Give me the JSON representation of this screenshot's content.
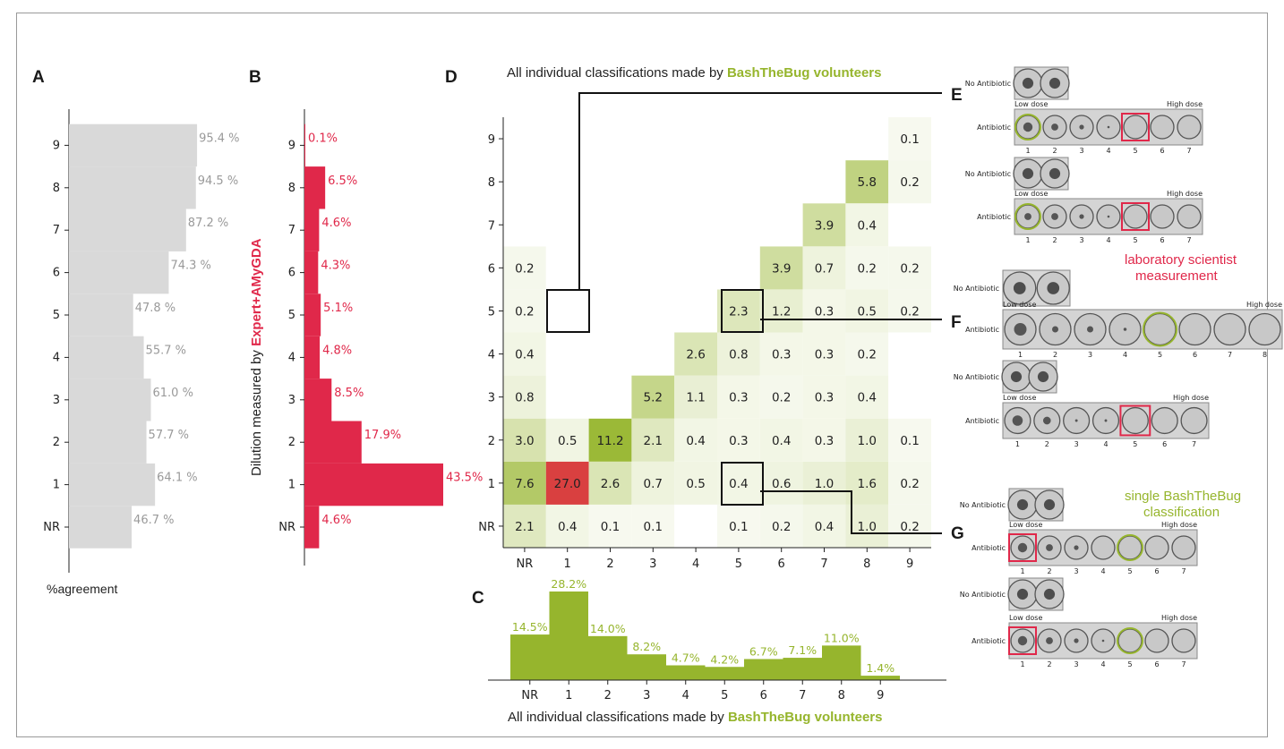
{
  "panels": {
    "A": "A",
    "B": "B",
    "C": "C",
    "D": "D",
    "E": "E",
    "F": "F",
    "G": "G"
  },
  "colors": {
    "red": "#e0284a",
    "green": "#96b52d",
    "grey": "#d9d9d9",
    "grey_text": "#9a9a9a",
    "heat_max": "#d94040"
  },
  "chart_data": [
    {
      "id": "A",
      "type": "bar",
      "orientation": "horizontal",
      "categories": [
        "NR",
        "1",
        "2",
        "3",
        "4",
        "5",
        "6",
        "7",
        "8",
        "9"
      ],
      "values": [
        46.7,
        64.1,
        57.7,
        61.0,
        55.7,
        47.8,
        74.3,
        87.2,
        94.5,
        95.4
      ],
      "value_labels": [
        "46.7 %",
        "64.1 %",
        "57.7 %",
        "61.0 %",
        "55.7 %",
        "47.8 %",
        "74.3 %",
        "87.2 %",
        "94.5 %",
        "95.4 %"
      ],
      "xlabel": "%agreement",
      "xlim": [
        0,
        100
      ]
    },
    {
      "id": "B",
      "type": "bar",
      "orientation": "horizontal",
      "categories": [
        "NR",
        "1",
        "2",
        "3",
        "4",
        "5",
        "6",
        "7",
        "8",
        "9"
      ],
      "values": [
        4.6,
        43.5,
        17.9,
        8.5,
        4.8,
        5.1,
        4.3,
        4.6,
        6.5,
        0.1
      ],
      "value_labels": [
        "4.6%",
        "43.5%",
        "17.9%",
        "8.5%",
        "4.8%",
        "5.1%",
        "4.3%",
        "4.6%",
        "6.5%",
        "0.1%"
      ],
      "ylabel_plain": "Dilution measured by ",
      "ylabel_emph": "Expert+AMyGDA",
      "xlim": [
        0,
        45
      ]
    },
    {
      "id": "D",
      "type": "heatmap",
      "title_plain": "All individual classifications made by ",
      "title_emph": "BashTheBug volunteers",
      "x_categories": [
        "NR",
        "1",
        "2",
        "3",
        "4",
        "5",
        "6",
        "7",
        "8",
        "9"
      ],
      "y_categories": [
        "NR",
        "1",
        "2",
        "3",
        "4",
        "5",
        "6",
        "7",
        "8",
        "9"
      ],
      "cells": [
        [
          "2.1",
          "0.4",
          "0.1",
          "0.1",
          "",
          "0.1",
          "0.2",
          "0.4",
          "1.0",
          "0.2"
        ],
        [
          "7.6",
          "27.0",
          "2.6",
          "0.7",
          "0.5",
          "0.4",
          "0.6",
          "1.0",
          "1.6",
          "0.2"
        ],
        [
          "3.0",
          "0.5",
          "11.2",
          "2.1",
          "0.4",
          "0.3",
          "0.4",
          "0.3",
          "1.0",
          "0.1"
        ],
        [
          "0.8",
          "",
          "",
          "5.2",
          "1.1",
          "0.3",
          "0.2",
          "0.3",
          "0.4",
          ""
        ],
        [
          "0.4",
          "",
          "",
          "",
          "2.6",
          "0.8",
          "0.3",
          "0.3",
          "0.2",
          ""
        ],
        [
          "0.2",
          "",
          "",
          "",
          "",
          "2.3",
          "1.2",
          "0.3",
          "0.5",
          "0.2"
        ],
        [
          "0.2",
          "",
          "",
          "",
          "",
          "",
          "3.9",
          "0.7",
          "0.2",
          "0.2"
        ],
        [
          "",
          "",
          "",
          "",
          "",
          "",
          "",
          "3.9",
          "0.4",
          ""
        ],
        [
          "",
          "",
          "",
          "",
          "",
          "",
          "",
          "",
          "5.8",
          "0.2"
        ],
        [
          "",
          "",
          "",
          "",
          "",
          "",
          "",
          "",
          "",
          "0.1"
        ]
      ]
    },
    {
      "id": "C",
      "type": "bar",
      "categories": [
        "NR",
        "1",
        "2",
        "3",
        "4",
        "5",
        "6",
        "7",
        "8",
        "9"
      ],
      "values": [
        14.5,
        28.2,
        14.0,
        8.2,
        4.7,
        4.2,
        6.7,
        7.1,
        11.0,
        1.4
      ],
      "value_labels": [
        "14.5%",
        "28.2%",
        "14.0%",
        "8.2%",
        "4.7%",
        "4.2%",
        "6.7%",
        "7.1%",
        "11.0%",
        "1.4%"
      ],
      "xlabel_plain": "All individual classifications made by ",
      "xlabel_emph": "BashTheBug volunteers",
      "ylim": [
        0,
        30
      ]
    }
  ],
  "plates": {
    "no_antibiotic": "No Antibiotic",
    "antibiotic": "Antibiotic",
    "low_dose": "Low dose",
    "high_dose": "High dose",
    "wells7": [
      "1",
      "2",
      "3",
      "4",
      "5",
      "6",
      "7"
    ],
    "wells8": [
      "1",
      "2",
      "3",
      "4",
      "5",
      "6",
      "7",
      "8"
    ]
  },
  "annotations": {
    "lab_line1": "laboratory scientist",
    "lab_line2": "measurement",
    "btb_line1": "single BashTheBug",
    "btb_line2": "classification"
  }
}
